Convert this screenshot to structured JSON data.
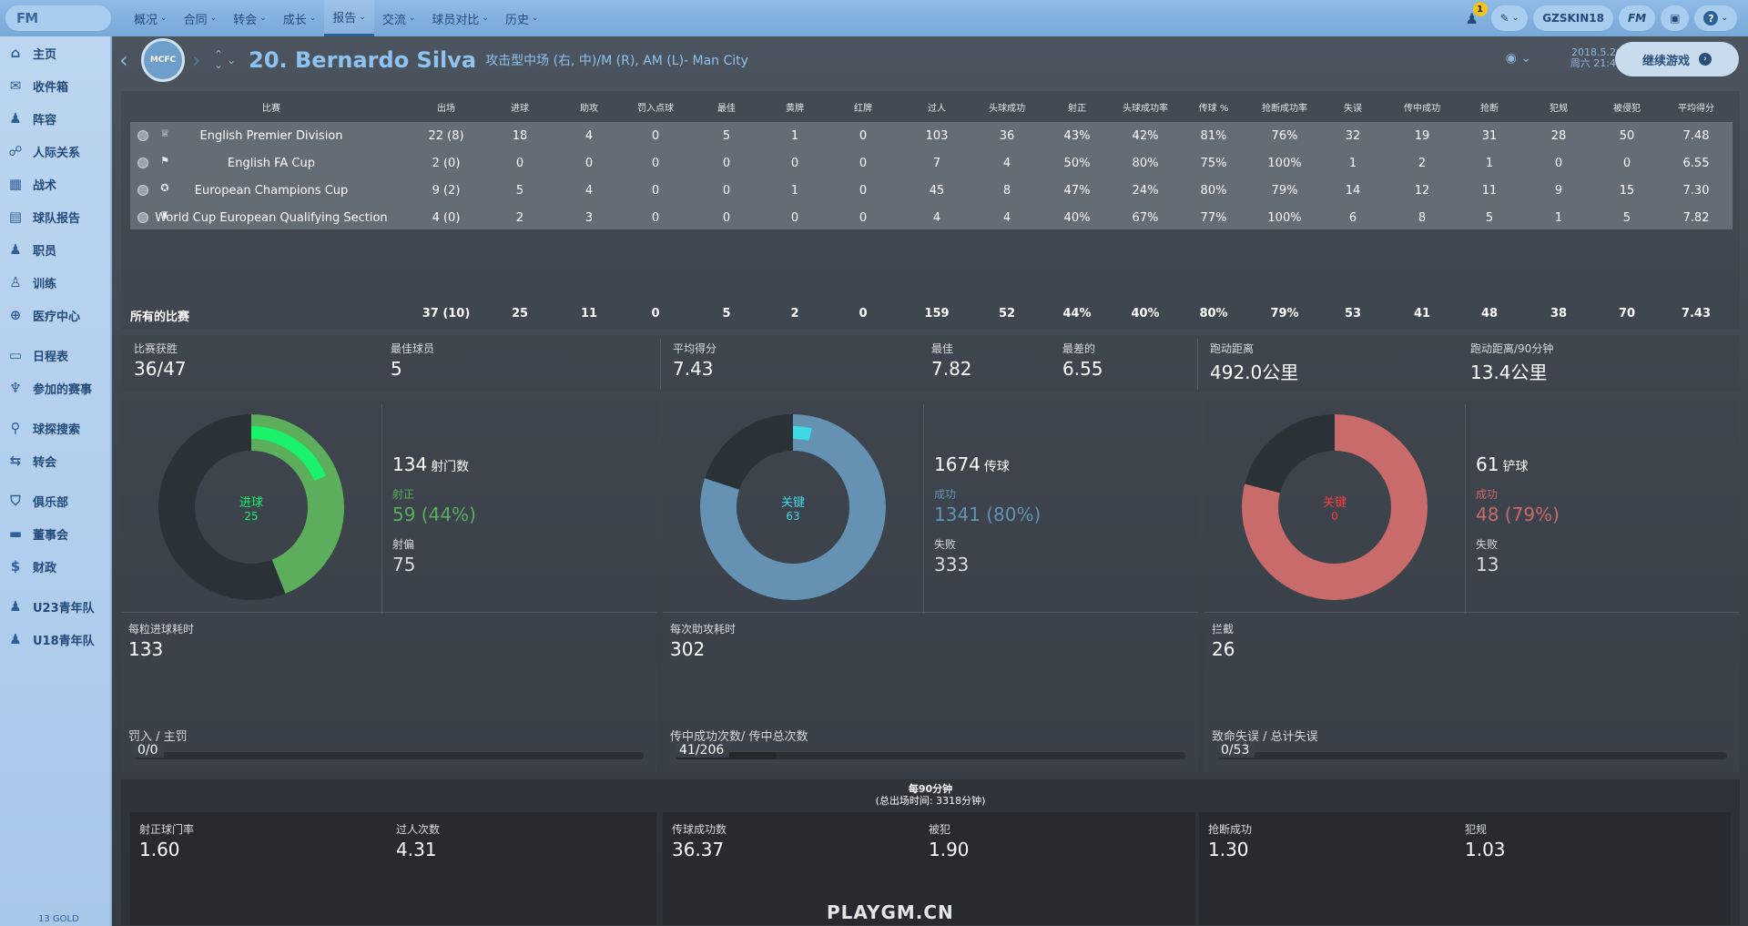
{
  "topbar": {
    "logo": "FM",
    "menu": [
      "概况",
      "合同",
      "转会",
      "成长",
      "报告",
      "交流",
      "球员对比",
      "历史"
    ],
    "notifications": "1",
    "user": "GZSKIN18",
    "fm_label": "FM",
    "help": "?"
  },
  "sidebar": {
    "items": [
      "主页",
      "收件箱",
      "阵容",
      "人际关系",
      "战术",
      "球队报告",
      "职员",
      "训练",
      "医疗中心",
      "日程表",
      "参加的赛事",
      "球探搜索",
      "转会",
      "俱乐部",
      "董事会",
      "财政",
      "U23青年队",
      "U18青年队"
    ],
    "gold": "13 GOLD"
  },
  "header": {
    "player_name": "20. Bernardo Silva",
    "position": "攻击型中场 (右, 中)/M (R), AM (L)- Man City",
    "date": "2018.5.26",
    "time": "周六 21:45",
    "continue_label": "继续游戏"
  },
  "table": {
    "headers": [
      "比赛",
      "出场",
      "进球",
      "助攻",
      "罚入点球",
      "最佳",
      "黄牌",
      "红牌",
      "过人",
      "头球成功",
      "射正",
      "头球成功率",
      "传球 %",
      "抢断成功率",
      "失误",
      "传中成功",
      "抢断",
      "犯规",
      "被侵犯",
      "平均得分"
    ],
    "rows": [
      [
        "English Premier Division",
        "22 (8)",
        "18",
        "4",
        "0",
        "5",
        "1",
        "0",
        "103",
        "36",
        "43%",
        "42%",
        "81%",
        "76%",
        "32",
        "19",
        "31",
        "28",
        "50",
        "7.48"
      ],
      [
        "English FA Cup",
        "2 (0)",
        "0",
        "0",
        "0",
        "0",
        "0",
        "0",
        "7",
        "4",
        "50%",
        "80%",
        "75%",
        "100%",
        "1",
        "2",
        "1",
        "0",
        "0",
        "6.55"
      ],
      [
        "European Champions Cup",
        "9 (2)",
        "5",
        "4",
        "0",
        "0",
        "1",
        "0",
        "45",
        "8",
        "47%",
        "24%",
        "80%",
        "79%",
        "14",
        "12",
        "11",
        "9",
        "15",
        "7.30"
      ],
      [
        "World Cup European Qualifying Section",
        "4 (0)",
        "2",
        "3",
        "0",
        "0",
        "0",
        "0",
        "4",
        "4",
        "40%",
        "67%",
        "77%",
        "100%",
        "6",
        "8",
        "5",
        "1",
        "5",
        "7.82"
      ]
    ],
    "totals": [
      "所有的比赛",
      "37 (10)",
      "25",
      "11",
      "0",
      "5",
      "2",
      "0",
      "159",
      "52",
      "44%",
      "40%",
      "80%",
      "79%",
      "53",
      "41",
      "48",
      "38",
      "70",
      "7.43"
    ]
  },
  "summary": {
    "wins_label": "比赛获胜",
    "wins": "36/47",
    "motm_label": "最佳球员",
    "motm": "5",
    "avg_label": "平均得分",
    "avg": "7.43",
    "best_label": "最佳",
    "best": "7.82",
    "worst_label": "最差的",
    "worst": "6.55",
    "dist_label": "跑动距离",
    "dist": "492.0公里",
    "dist90_label": "跑动距离/90分钟",
    "dist90": "13.4公里"
  },
  "cards": {
    "shots": {
      "center_label": "进球",
      "center_value": "25",
      "goals_fraction": 0.1866,
      "total": "134",
      "total_label": "射门数",
      "pos_label": "射正",
      "pos_value": "59 (44%)",
      "pos_fraction": 0.44,
      "neg_label": "射偏",
      "neg_value": "75",
      "mid_label": "每粒进球耗时",
      "mid_value": "133",
      "bar_label": "罚入 / 主罚",
      "bar_value": "0/0",
      "bar_fraction": 0,
      "color": "#5cae5c",
      "highlight": "#19f26a"
    },
    "passes": {
      "center_label": "关键",
      "center_value": "63",
      "key_fraction": 0.0376,
      "total": "1674",
      "total_label": "传球",
      "pos_label": "成功",
      "pos_value": "1341 (80%)",
      "pos_fraction": 0.8,
      "neg_label": "失败",
      "neg_value": "333",
      "mid_label": "每次助攻耗时",
      "mid_value": "302",
      "bar_label": "传中成功次数/ 传中总次数",
      "bar_value": "41/206",
      "bar_fraction": 0.199,
      "color": "#6591b3",
      "highlight": "#3fd9e6"
    },
    "tackles": {
      "center_label": "关键",
      "center_value": "0",
      "total": "61",
      "total_label": "铲球",
      "pos_label": "成功",
      "pos_value": "48 (79%)",
      "pos_fraction": 0.79,
      "neg_label": "失败",
      "neg_value": "13",
      "mid_label": "拦截",
      "mid_value": "26",
      "bar_label": "致命失误 / 总计失误",
      "bar_value": "0/53",
      "bar_fraction": 0,
      "color": "#c96b6b",
      "highlight": "#ff3b3b"
    }
  },
  "per90": {
    "title": "每90分钟",
    "subtitle": "(总出场时间: 3318分钟)",
    "items": [
      {
        "label": "射正球门率",
        "value": "1.60"
      },
      {
        "label": "过人次数",
        "value": "4.31"
      },
      {
        "label": "传球成功数",
        "value": "36.37"
      },
      {
        "label": "被犯",
        "value": "1.90"
      },
      {
        "label": "抢断成功",
        "value": "1.30"
      },
      {
        "label": "犯规",
        "value": "1.03"
      }
    ]
  },
  "watermark": "PLAYGM.CN"
}
